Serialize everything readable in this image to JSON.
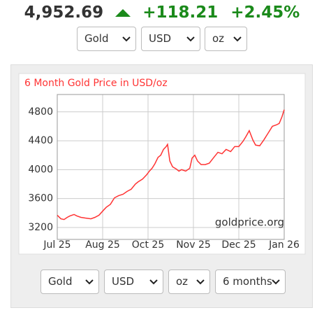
{
  "header": {
    "price": "4,952.69",
    "change": "+118.21",
    "change_percent": "+2.45%"
  },
  "top_selects": [
    "Gold",
    "USD",
    "oz"
  ],
  "chart_data": {
    "type": "line",
    "title": "6 Month Gold Price in USD/oz",
    "watermark": "goldprice.org",
    "x": [
      0,
      0.08,
      0.15,
      0.22,
      0.28,
      0.37,
      0.43,
      0.52,
      0.62,
      0.74,
      0.83,
      0.92,
      1.02,
      1.08,
      1.17,
      1.26,
      1.35,
      1.45,
      1.54,
      1.63,
      1.72,
      1.78,
      1.88,
      1.97,
      2.03,
      2.09,
      2.15,
      2.22,
      2.28,
      2.34,
      2.4,
      2.43,
      2.48,
      2.54,
      2.62,
      2.68,
      2.74,
      2.83,
      2.92,
      2.97,
      3.03,
      3.09,
      3.17,
      3.26,
      3.35,
      3.45,
      3.54,
      3.63,
      3.72,
      3.82,
      3.91,
      4.0,
      4.09,
      4.15,
      4.23,
      4.31,
      4.37,
      4.46,
      4.55,
      4.65,
      4.74,
      4.83,
      4.89,
      4.95,
      5.0
    ],
    "series": [
      {
        "color": "#ff3333",
        "values": [
          3370,
          3320,
          3310,
          3340,
          3360,
          3380,
          3360,
          3340,
          3330,
          3320,
          3340,
          3370,
          3440,
          3480,
          3520,
          3610,
          3640,
          3660,
          3700,
          3730,
          3800,
          3830,
          3870,
          3930,
          3980,
          4020,
          4080,
          4170,
          4200,
          4280,
          4320,
          4350,
          4120,
          4040,
          4010,
          3980,
          4000,
          3980,
          4020,
          4160,
          4200,
          4120,
          4070,
          4070,
          4090,
          4170,
          4240,
          4220,
          4280,
          4250,
          4320,
          4320,
          4390,
          4450,
          4540,
          4410,
          4340,
          4330,
          4410,
          4510,
          4600,
          4620,
          4640,
          4730,
          4830
        ]
      }
    ],
    "xlim": [
      0,
      5
    ],
    "xticks": [
      {
        "value": 0,
        "label": "Jul 25"
      },
      {
        "value": 1,
        "label": "Aug 25"
      },
      {
        "value": 2,
        "label": "Oct 25"
      },
      {
        "value": 3,
        "label": "Nov 25"
      },
      {
        "value": 4,
        "label": "Dec 25"
      },
      {
        "value": 5,
        "label": "Jan 26"
      }
    ],
    "ylim": [
      3035,
      5040
    ],
    "yticks": [
      3200,
      3600,
      4000,
      4400,
      4800
    ],
    "grid": true
  },
  "bottom_selects": [
    "Gold",
    "USD",
    "oz",
    "6 months"
  ]
}
